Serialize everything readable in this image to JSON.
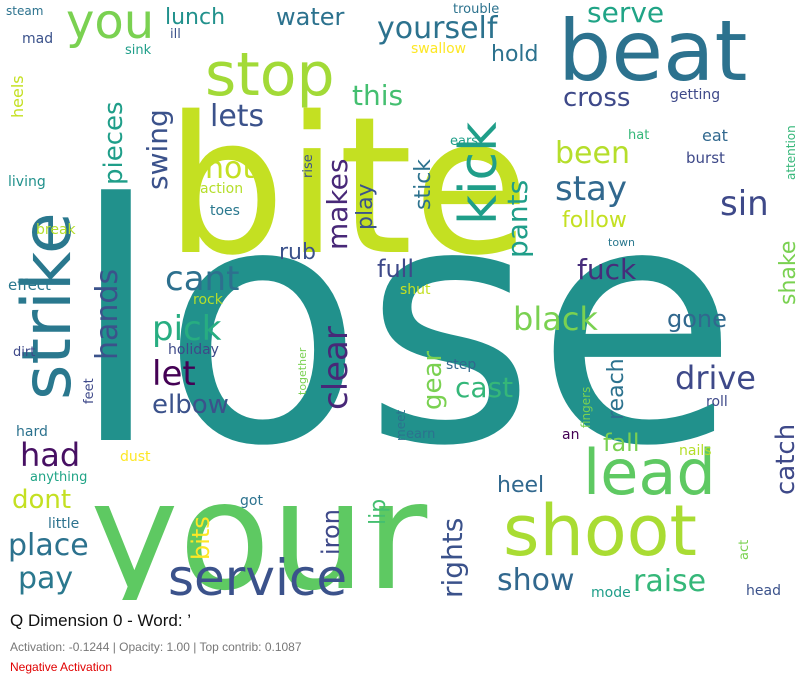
{
  "title": "Q Dimension 0 - Word: ’",
  "stats": "Activation: -0.1244 | Opacity: 1.00 | Top contrib: 0.1087",
  "status": {
    "text": "Negative Activation",
    "color": "#e00000"
  },
  "words": [
    {
      "t": "lose",
      "c": "#21918c"
    },
    {
      "t": "your",
      "c": "#5ec962"
    },
    {
      "t": "bite",
      "c": "#c4e022"
    },
    {
      "t": "beat",
      "c": "#2c728e"
    },
    {
      "t": "stop",
      "c": "#a2da37"
    },
    {
      "t": "strike",
      "c": "#2a788e"
    },
    {
      "t": "shoot",
      "c": "#a9dc33"
    },
    {
      "t": "lead",
      "c": "#5ec962"
    },
    {
      "t": "service",
      "c": "#3b528b"
    },
    {
      "t": "kick",
      "c": "#1f9e89"
    },
    {
      "t": "you",
      "c": "#7ad151"
    },
    {
      "t": "yourself",
      "c": "#2c728e"
    },
    {
      "t": "stay",
      "c": "#31688e"
    },
    {
      "t": "been",
      "c": "#b5de2b"
    },
    {
      "t": "sin",
      "c": "#3e4989"
    },
    {
      "t": "pick",
      "c": "#27ad81"
    },
    {
      "t": "cant",
      "c": "#2d708e"
    },
    {
      "t": "clear",
      "c": "#482878"
    },
    {
      "t": "let",
      "c": "#440154"
    },
    {
      "t": "hands",
      "c": "#3b528b"
    },
    {
      "t": "black",
      "c": "#7ad151"
    },
    {
      "t": "drive",
      "c": "#3e4989"
    },
    {
      "t": "had",
      "c": "#471063"
    },
    {
      "t": "place",
      "c": "#2c728e"
    },
    {
      "t": "pay",
      "c": "#2a788e"
    },
    {
      "t": "raise",
      "c": "#35b779"
    },
    {
      "t": "show",
      "c": "#31688e"
    },
    {
      "t": "rights",
      "c": "#3b528b"
    },
    {
      "t": "catch",
      "c": "#3e4989"
    },
    {
      "t": "fuck",
      "c": "#472d7b"
    },
    {
      "t": "elbow",
      "c": "#3b528b"
    },
    {
      "t": "pants",
      "c": "#1f9e89"
    },
    {
      "t": "swing",
      "c": "#3b528b"
    },
    {
      "t": "makes",
      "c": "#482878"
    },
    {
      "t": "pieces",
      "c": "#1f9e89"
    },
    {
      "t": "hot",
      "c": "#c4e022"
    },
    {
      "t": "lets",
      "c": "#3b528b"
    },
    {
      "t": "serve",
      "c": "#20a486"
    },
    {
      "t": "cross",
      "c": "#3e4989"
    },
    {
      "t": "water",
      "c": "#2c728e"
    },
    {
      "t": "this",
      "c": "#44bf70"
    },
    {
      "t": "full",
      "c": "#3e4989"
    },
    {
      "t": "gear",
      "c": "#7ad151"
    },
    {
      "t": "cast",
      "c": "#35b779"
    },
    {
      "t": "reach",
      "c": "#2c728e"
    },
    {
      "t": "gone",
      "c": "#31688e"
    },
    {
      "t": "lip",
      "c": "#44bf70"
    },
    {
      "t": "iron",
      "c": "#3e4989"
    },
    {
      "t": "heel",
      "c": "#31688e"
    },
    {
      "t": "dont",
      "c": "#c4e022"
    },
    {
      "t": "bits",
      "c": "#fde725"
    },
    {
      "t": "fall",
      "c": "#7ad151"
    },
    {
      "t": "shake",
      "c": "#7ad151"
    },
    {
      "t": "play",
      "c": "#3b528b"
    },
    {
      "t": "stick",
      "c": "#2c728e"
    },
    {
      "t": "rub",
      "c": "#3b528b"
    },
    {
      "t": "follow",
      "c": "#c4e022"
    },
    {
      "t": "hold",
      "c": "#2c728e"
    },
    {
      "t": "lunch",
      "c": "#21918c"
    },
    {
      "t": "heels",
      "c": "#c4e022"
    },
    {
      "t": "mad",
      "c": "#3b528b"
    },
    {
      "t": "steam",
      "c": "#2c728e"
    },
    {
      "t": "sink",
      "c": "#1f9e89"
    },
    {
      "t": "ill",
      "c": "#3b528b"
    },
    {
      "t": "swallow",
      "c": "#fde725"
    },
    {
      "t": "trouble",
      "c": "#2c728e"
    },
    {
      "t": "getting",
      "c": "#3e4989"
    },
    {
      "t": "eat",
      "c": "#31688e"
    },
    {
      "t": "hat",
      "c": "#35b779"
    },
    {
      "t": "burst",
      "c": "#3e4989"
    },
    {
      "t": "attention",
      "c": "#35b779"
    },
    {
      "t": "town",
      "c": "#2a788e"
    },
    {
      "t": "ears",
      "c": "#1f9e89"
    },
    {
      "t": "rise",
      "c": "#3b528b"
    },
    {
      "t": "action",
      "c": "#b5de2b"
    },
    {
      "t": "toes",
      "c": "#2a788e"
    },
    {
      "t": "living",
      "c": "#21918c"
    },
    {
      "t": "break",
      "c": "#b5de2b"
    },
    {
      "t": "effect",
      "c": "#2a788e"
    },
    {
      "t": "rock",
      "c": "#b5de2b"
    },
    {
      "t": "shut",
      "c": "#c4e022"
    },
    {
      "t": "together",
      "c": "#7ad151"
    },
    {
      "t": "holiday",
      "c": "#3e4989"
    },
    {
      "t": "dirt",
      "c": "#3e4989"
    },
    {
      "t": "feet",
      "c": "#3e4989"
    },
    {
      "t": "step",
      "c": "#31688e"
    },
    {
      "t": "fingers",
      "c": "#7ad151"
    },
    {
      "t": "roll",
      "c": "#3e4989"
    },
    {
      "t": "meet",
      "c": "#2c728e"
    },
    {
      "t": "earn",
      "c": "#2c728e"
    },
    {
      "t": "an",
      "c": "#440154"
    },
    {
      "t": "hard",
      "c": "#2c728e"
    },
    {
      "t": "anything",
      "c": "#20a486"
    },
    {
      "t": "dust",
      "c": "#fde725"
    },
    {
      "t": "nails",
      "c": "#b5de2b"
    },
    {
      "t": "little",
      "c": "#2c728e"
    },
    {
      "t": "got",
      "c": "#2c728e"
    },
    {
      "t": "act",
      "c": "#7ad151"
    },
    {
      "t": "mode",
      "c": "#1f9e89"
    },
    {
      "t": "head",
      "c": "#3b528b"
    }
  ]
}
